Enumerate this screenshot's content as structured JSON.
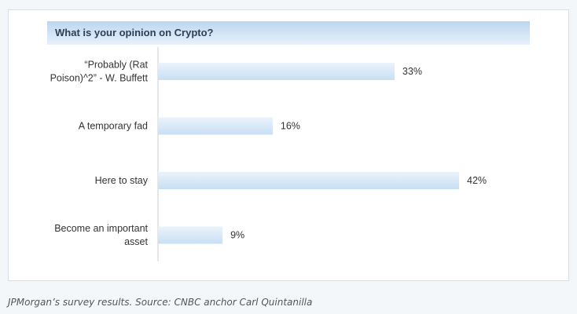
{
  "chart_data": {
    "type": "bar",
    "orientation": "horizontal",
    "title": "What is your opinion on Crypto?",
    "categories": [
      [
        "“Probably (Rat",
        "Poison)^2” - W. Buffett"
      ],
      [
        "A temporary fad"
      ],
      [
        "Here to stay"
      ],
      [
        "Become an important",
        "asset"
      ]
    ],
    "values": [
      33,
      16,
      42,
      9
    ],
    "value_labels": [
      "33%",
      "16%",
      "42%",
      "9%"
    ],
    "unit": "%",
    "bar_color": "#c9dff3",
    "bar_color_light": "#eaf3fb",
    "grid": false,
    "legend": "none"
  },
  "caption": "JPMorgan’s survey results. Source: CNBC anchor Carl Quintanilla"
}
